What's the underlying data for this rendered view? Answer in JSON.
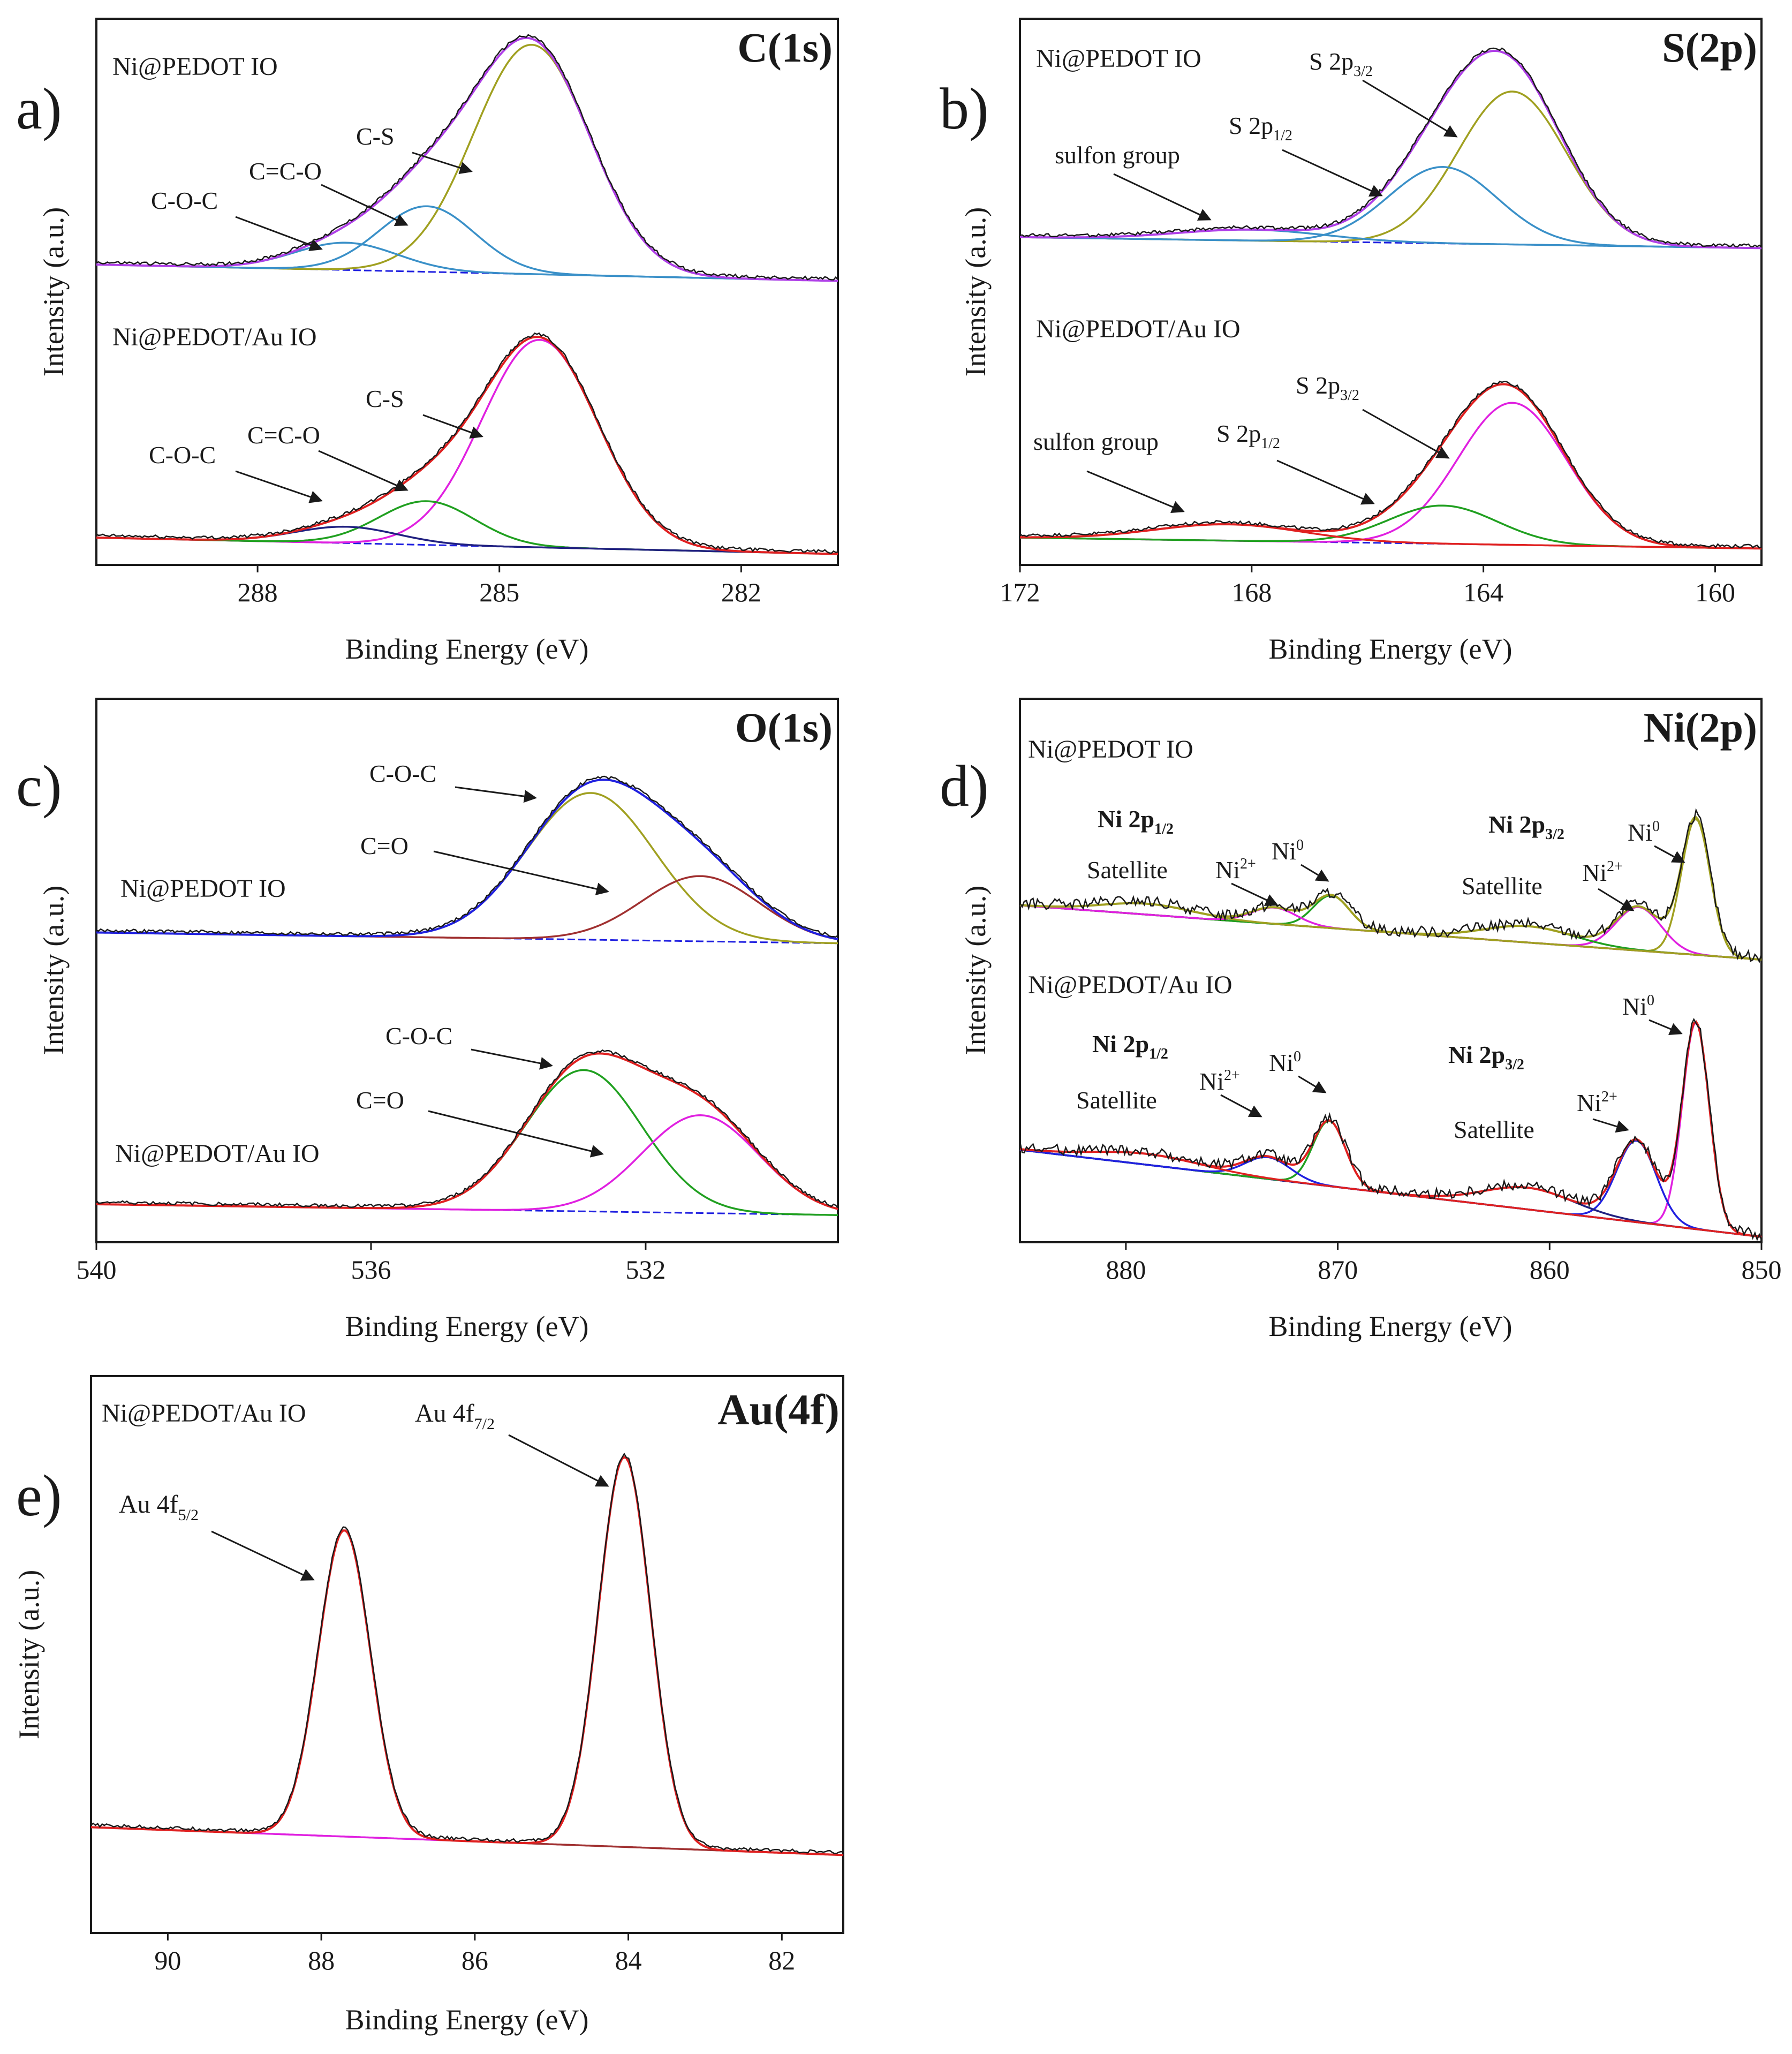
{
  "figure": {
    "axis_x_label": "Binding Energy (eV)",
    "axis_y_label": "Intensity (a.u.)"
  },
  "colors": {
    "black": "#1a1a1a",
    "purple": "#b040e8",
    "olive": "#a0a020",
    "teal": "#3a90c8",
    "red": "#e02020",
    "magenta": "#e020e0",
    "green": "#20a020",
    "blue": "#2020e0",
    "brown": "#a03030",
    "navy": "#202080",
    "gray": "#808080"
  },
  "chart_data": [
    {
      "id": "a",
      "type": "line",
      "panel_label": "a)",
      "title": "C(1s)",
      "xlabel": "Binding Energy (eV)",
      "ylabel": "Intensity (a.u.)",
      "xlim": [
        290.0,
        280.8
      ],
      "xticks": [
        288,
        285,
        282
      ],
      "xtick_labels": [
        "288",
        "285",
        "282"
      ],
      "ylim": [
        0,
        1
      ],
      "spectra": [
        {
          "sample": "Ni@PEDOT IO",
          "offset": 0.55,
          "baseline": {
            "x0": 290.0,
            "y0": 0.0,
            "x1": 280.8,
            "y1": -0.03
          },
          "components": [
            {
              "label": "C-S",
              "center": 284.6,
              "fwhm": 1.7,
              "height": 0.42,
              "color": "olive"
            },
            {
              "label": "C=C-O",
              "center": 285.9,
              "fwhm": 1.4,
              "height": 0.12,
              "color": "teal"
            },
            {
              "label": "C-O-C",
              "center": 286.9,
              "fwhm": 1.5,
              "height": 0.05,
              "color": "teal"
            }
          ],
          "envelope_color": "purple",
          "annotations": [
            {
              "label": "C-S",
              "component": 0
            },
            {
              "label": "C=C-O",
              "component": 1
            },
            {
              "label": "C-O-C",
              "component": 2
            }
          ]
        },
        {
          "sample": "Ni@PEDOT/Au IO",
          "offset": 0.05,
          "baseline": {
            "x0": 290.0,
            "y0": 0.0,
            "x1": 280.8,
            "y1": -0.03
          },
          "components": [
            {
              "label": "C-S",
              "center": 284.5,
              "fwhm": 1.7,
              "height": 0.38,
              "color": "magenta"
            },
            {
              "label": "C=C-O",
              "center": 285.9,
              "fwhm": 1.4,
              "height": 0.08,
              "color": "green"
            },
            {
              "label": "C-O-C",
              "center": 286.9,
              "fwhm": 1.5,
              "height": 0.03,
              "color": "navy"
            }
          ],
          "envelope_color": "red",
          "annotations": [
            {
              "label": "C-S",
              "component": 0
            },
            {
              "label": "C=C-O",
              "component": 1
            },
            {
              "label": "C-O-C",
              "component": 2
            }
          ]
        }
      ]
    },
    {
      "id": "b",
      "type": "line",
      "panel_label": "b)",
      "title": "S(2p)",
      "xlabel": "Binding Energy (eV)",
      "ylabel": "Intensity (a.u.)",
      "xlim": [
        172.0,
        159.2
      ],
      "xticks": [
        172,
        168,
        164,
        160
      ],
      "xtick_labels": [
        "172",
        "168",
        "164",
        "160"
      ],
      "ylim": [
        0,
        1
      ],
      "spectra": [
        {
          "sample": "Ni@PEDOT IO",
          "offset": 0.6,
          "baseline": {
            "x0": 172.0,
            "y0": 0.0,
            "x1": 159.2,
            "y1": -0.02
          },
          "components": [
            {
              "label": "S 2p3/2",
              "center": 163.5,
              "fwhm": 2.2,
              "height": 0.28,
              "color": "olive"
            },
            {
              "label": "S 2p1/2",
              "center": 164.7,
              "fwhm": 2.2,
              "height": 0.14,
              "color": "teal"
            },
            {
              "label": "sulfon group",
              "center": 168.0,
              "fwhm": 3.0,
              "height": 0.02,
              "color": "teal"
            }
          ],
          "envelope_color": "purple"
        },
        {
          "sample": "Ni@PEDOT/Au IO",
          "offset": 0.05,
          "baseline": {
            "x0": 172.0,
            "y0": 0.0,
            "x1": 159.2,
            "y1": -0.02
          },
          "components": [
            {
              "label": "S 2p3/2",
              "center": 163.5,
              "fwhm": 2.2,
              "height": 0.26,
              "color": "magenta"
            },
            {
              "label": "S 2p1/2",
              "center": 164.7,
              "fwhm": 2.2,
              "height": 0.07,
              "color": "green"
            },
            {
              "label": "sulfon group",
              "center": 168.4,
              "fwhm": 3.0,
              "height": 0.03,
              "color": "red"
            }
          ],
          "envelope_color": "red"
        }
      ],
      "annotation_text": {
        "top": {
          "main": [
            "S 2p",
            "S 2p",
            "sulfon group"
          ],
          "subs": [
            "3/2",
            "1/2"
          ]
        },
        "bottom": {
          "main": [
            "S 2p",
            "S 2p",
            "sulfon group"
          ],
          "subs": [
            "3/2",
            "1/2"
          ]
        }
      }
    },
    {
      "id": "c",
      "type": "line",
      "panel_label": "c)",
      "title": "O(1s)",
      "xlabel": "Binding Energy (eV)",
      "ylabel": "Intensity (a.u.)",
      "xlim": [
        540.0,
        529.2
      ],
      "xticks": [
        540,
        536,
        532
      ],
      "xtick_labels": [
        "540",
        "536",
        "532"
      ],
      "ylim": [
        0,
        1
      ],
      "spectra": [
        {
          "sample": "Ni@PEDOT IO",
          "offset": 0.57,
          "baseline": {
            "x0": 540.0,
            "y0": 0.0,
            "x1": 529.2,
            "y1": -0.02
          },
          "components": [
            {
              "label": "C-O-C",
              "center": 532.8,
              "fwhm": 2.2,
              "height": 0.27,
              "color": "olive"
            },
            {
              "label": "C=O",
              "center": 531.2,
              "fwhm": 2.0,
              "height": 0.12,
              "color": "brown"
            }
          ],
          "envelope_color": "blue",
          "annotations": [
            {
              "label": "C-O-C",
              "component": 0
            },
            {
              "label": "C=O",
              "component": 1
            }
          ]
        },
        {
          "sample": "Ni@PEDOT/Au IO",
          "offset": 0.07,
          "baseline": {
            "x0": 540.0,
            "y0": 0.0,
            "x1": 529.2,
            "y1": -0.02
          },
          "components": [
            {
              "label": "C-O-C",
              "center": 532.9,
              "fwhm": 2.0,
              "height": 0.26,
              "color": "green"
            },
            {
              "label": "C=O",
              "center": 531.2,
              "fwhm": 2.0,
              "height": 0.18,
              "color": "magenta"
            }
          ],
          "envelope_color": "red",
          "annotations": [
            {
              "label": "C-O-C",
              "component": 0
            },
            {
              "label": "C=O",
              "component": 1
            }
          ]
        }
      ]
    },
    {
      "id": "d",
      "type": "line",
      "panel_label": "d)",
      "title": "Ni(2p)",
      "xlabel": "Binding Energy (eV)",
      "ylabel": "Intensity (a.u.)",
      "xlim": [
        885.0,
        850.0
      ],
      "xticks": [
        880,
        870,
        860,
        850
      ],
      "xtick_labels": [
        "880",
        "870",
        "860",
        "850"
      ],
      "ylim": [
        0,
        1
      ],
      "spectra": [
        {
          "sample": "Ni@PEDOT IO",
          "offset": 0.62,
          "baseline": {
            "x0": 885.0,
            "y0": 0.0,
            "x1": 850.0,
            "y1": -0.1
          },
          "components": [
            {
              "label": "Ni0",
              "center": 853.1,
              "fwhm": 1.6,
              "height": 0.25,
              "color": "olive"
            },
            {
              "label": "Ni2+",
              "center": 855.8,
              "fwhm": 2.5,
              "height": 0.08,
              "color": "magenta"
            },
            {
              "label": "Satellite",
              "center": 861.0,
              "fwhm": 5.0,
              "height": 0.03,
              "color": "green"
            },
            {
              "label": "Ni0",
              "center": 870.3,
              "fwhm": 2.0,
              "height": 0.06,
              "color": "green"
            },
            {
              "label": "Ni2+",
              "center": 873.0,
              "fwhm": 2.5,
              "height": 0.03,
              "color": "magenta"
            },
            {
              "label": "Satellite",
              "center": 879.0,
              "fwhm": 5.0,
              "height": 0.02,
              "color": "olive"
            }
          ],
          "envelope_color": "olive"
        },
        {
          "sample": "Ni@PEDOT/Au IO",
          "offset": 0.17,
          "baseline": {
            "x0": 885.0,
            "y0": 0.0,
            "x1": 850.0,
            "y1": -0.16
          },
          "components": [
            {
              "label": "Ni0",
              "center": 853.1,
              "fwhm": 1.5,
              "height": 0.38,
              "color": "magenta"
            },
            {
              "label": "Ni2+",
              "center": 855.9,
              "fwhm": 2.2,
              "height": 0.15,
              "color": "blue"
            },
            {
              "label": "Satellite",
              "center": 861.0,
              "fwhm": 5.0,
              "height": 0.04,
              "color": "navy"
            },
            {
              "label": "Ni0",
              "center": 870.4,
              "fwhm": 1.8,
              "height": 0.12,
              "color": "green"
            },
            {
              "label": "Ni2+",
              "center": 873.3,
              "fwhm": 2.5,
              "height": 0.04,
              "color": "blue"
            },
            {
              "label": "Satellite",
              "center": 879.0,
              "fwhm": 6.0,
              "height": 0.02,
              "color": "red"
            }
          ],
          "envelope_color": "red"
        }
      ],
      "annotation_text": {
        "top": {
          "main": [
            "Ni 2p",
            "Ni 2p",
            "Satellite",
            "Satellite",
            "Ni",
            "Ni",
            "Ni",
            "Ni"
          ],
          "subs": [
            "1/2",
            "3/2"
          ],
          "sups": [
            "2+",
            "0",
            "0",
            "2+"
          ]
        },
        "bottom": {
          "main": [
            "Ni 2p",
            "Ni 2p",
            "Satellite",
            "Satellite",
            "Ni",
            "Ni",
            "Ni",
            "Ni"
          ],
          "subs": [
            "1/2",
            "3/2"
          ],
          "sups": [
            "2+",
            "0",
            "0",
            "2+"
          ]
        }
      }
    },
    {
      "id": "e",
      "type": "line",
      "panel_label": "e)",
      "title": "Au(4f)",
      "xlabel": "Binding Energy (eV)",
      "ylabel": "Intensity (a.u.)",
      "xlim": [
        91.0,
        81.2
      ],
      "xticks": [
        90,
        88,
        86,
        84,
        82
      ],
      "xtick_labels": [
        "90",
        "88",
        "86",
        "84",
        "82"
      ],
      "ylim": [
        0,
        1
      ],
      "spectra": [
        {
          "sample": "Ni@PEDOT/Au IO",
          "offset": 0.19,
          "baseline": {
            "x0": 91.0,
            "y0": 0.0,
            "x1": 81.2,
            "y1": -0.05
          },
          "components": [
            {
              "label": "Au 4f7/2",
              "center": 84.05,
              "fwhm": 0.8,
              "height": 0.7,
              "color": "magenta"
            },
            {
              "label": "Au 4f5/2",
              "center": 87.7,
              "fwhm": 0.8,
              "height": 0.55,
              "color": "brown"
            }
          ],
          "envelope_color": "red"
        }
      ],
      "annotation_text": {
        "main": [
          "Au 4f",
          "Au 4f"
        ],
        "subs": [
          "7/2",
          "5/2"
        ]
      }
    }
  ]
}
